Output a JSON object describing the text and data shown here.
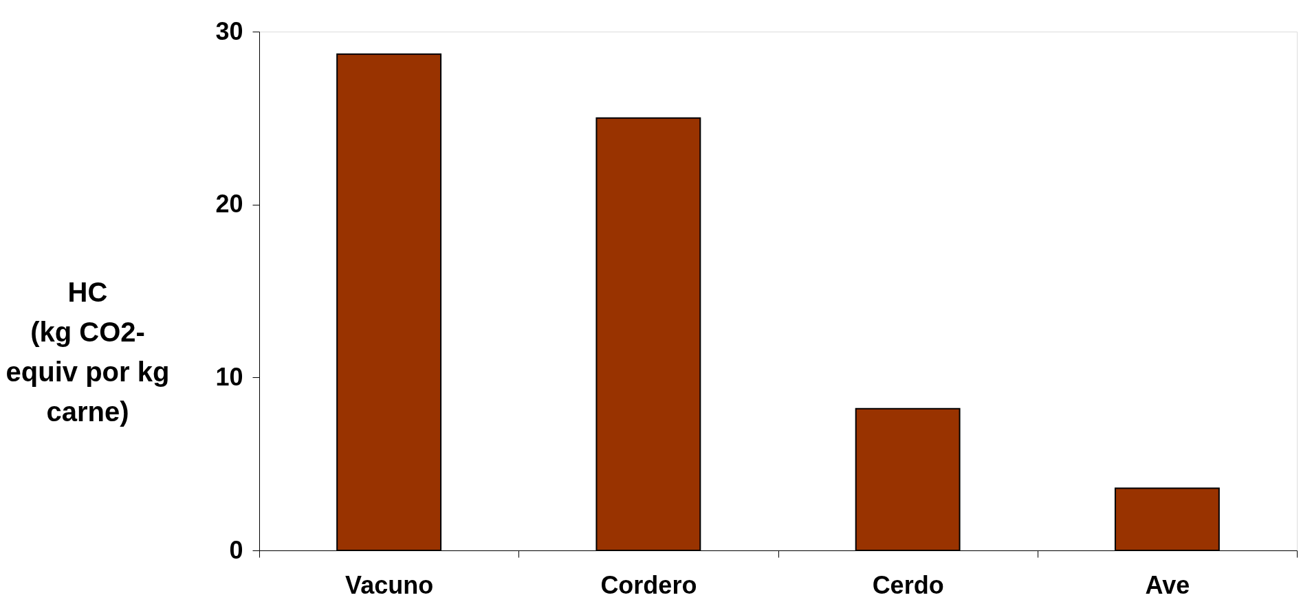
{
  "chart_data": {
    "type": "bar",
    "ylabel": "HC\n(kg CO2-\nequiv por kg\ncarne)",
    "categories": [
      "Vacuno",
      "Cordero",
      "Cerdo",
      "Ave"
    ],
    "values": [
      28.7,
      25.0,
      8.2,
      3.6
    ],
    "color": "#993300",
    "ylim": [
      0,
      30
    ],
    "yticks": [
      0,
      10,
      20,
      30
    ],
    "grid": false
  }
}
